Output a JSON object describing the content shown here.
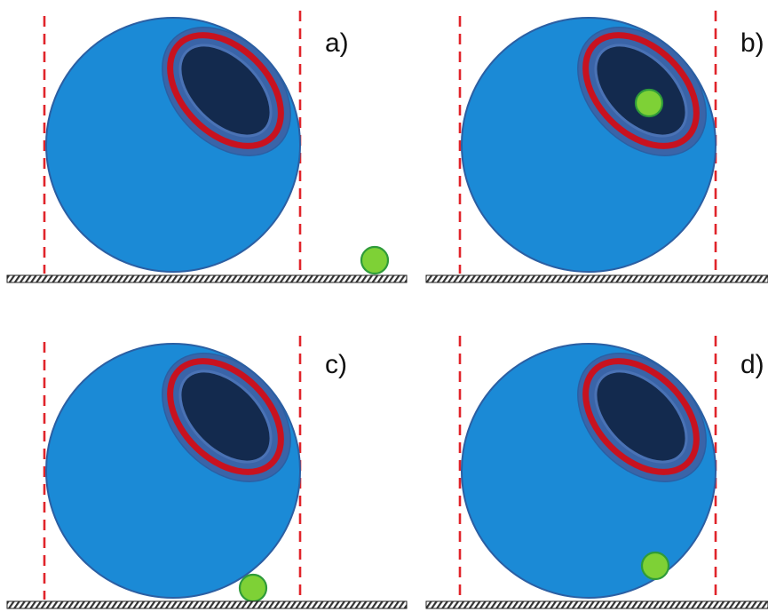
{
  "figure": {
    "panels": [
      {
        "id": "a",
        "label": "a)",
        "particle": "outside-right"
      },
      {
        "id": "b",
        "label": "b)",
        "particle": "inside-dark-cavity"
      },
      {
        "id": "c",
        "label": "c)",
        "particle": "at-bottom-edge"
      },
      {
        "id": "d",
        "label": "d)",
        "particle": "inside-lower-body"
      }
    ],
    "colors": {
      "sphere_fill": "#1b8ad6",
      "sphere_stroke": "#2b5fa3",
      "cavity_ring": "#3a64a8",
      "cavity_fill": "#132a4e",
      "red_ring": "#c8121f",
      "particle_fill": "#7ed136",
      "particle_stroke": "#2f9b3a",
      "guide_line": "#e0242a",
      "ground_hatch": "#333333"
    },
    "icons": {
      "guide": "dashed-vertical-line",
      "ground": "hatched-floor",
      "particle": "green-circle"
    }
  }
}
